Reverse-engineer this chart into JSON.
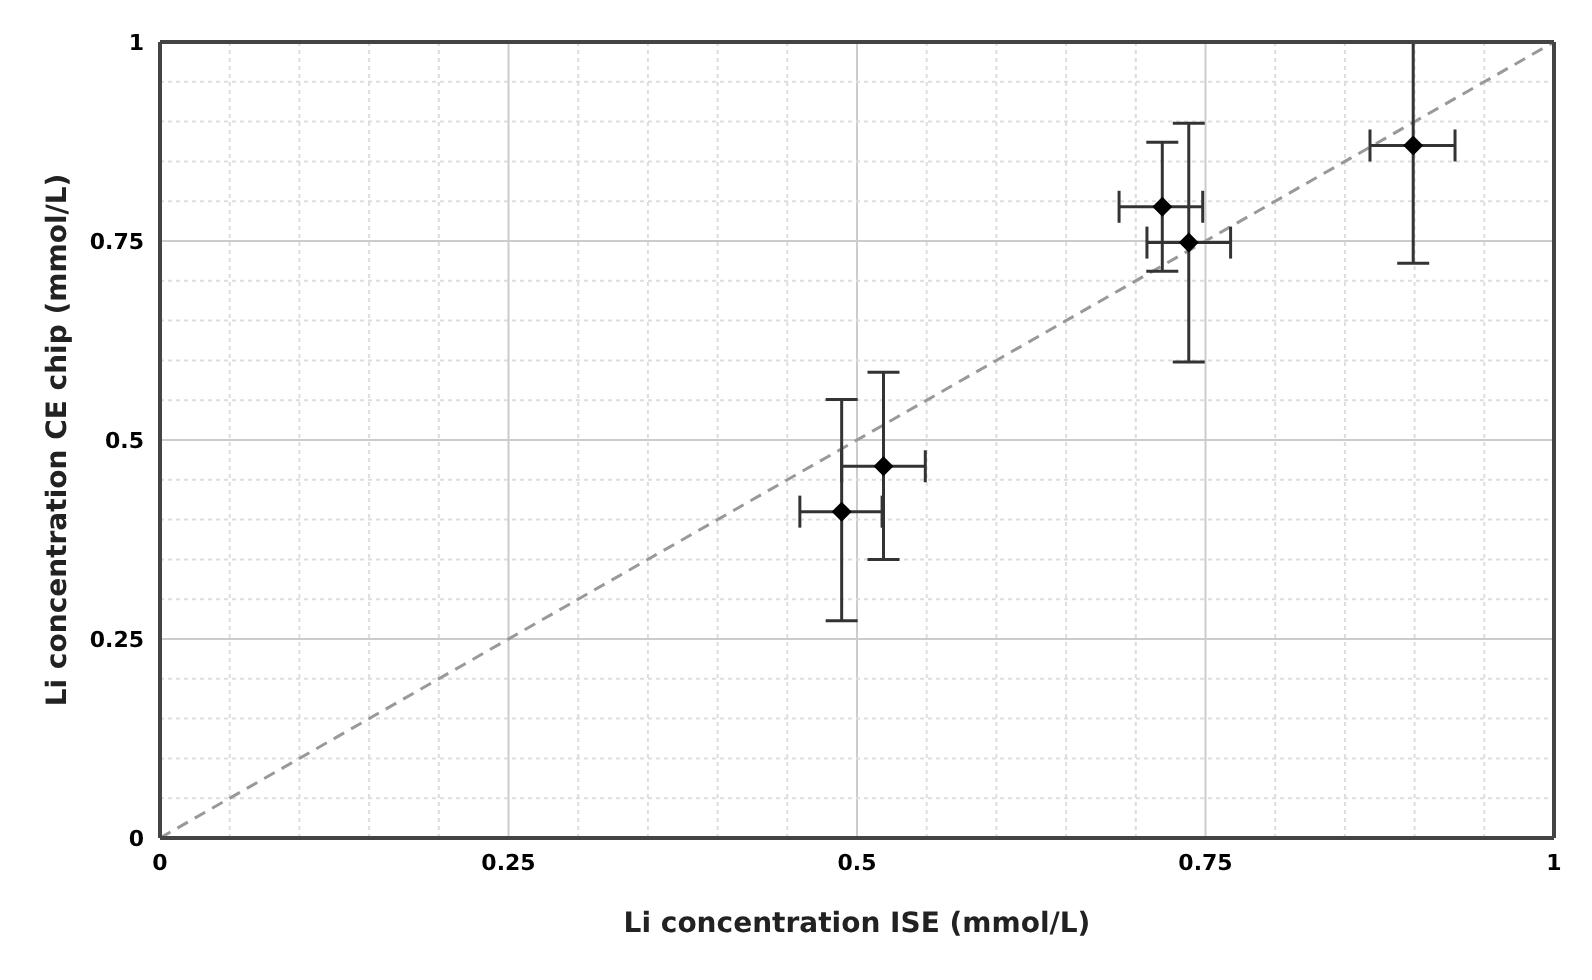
{
  "chart_data": {
    "type": "scatter",
    "xlabel": "Li concentration ISE (mmol/L)",
    "ylabel": "Li concentration CE chip (mmol/L)",
    "xlim": [
      0,
      1
    ],
    "ylim": [
      0,
      1
    ],
    "xticks": [
      0,
      {
        "value": 0.05,
        "label": null
      },
      {
        "value": 0.1,
        "label": null
      },
      {
        "value": 0.15,
        "label": null
      },
      {
        "value": 0.2,
        "label": null
      },
      0.25,
      {
        "value": 0.3,
        "label": null
      },
      {
        "value": 0.35,
        "label": null
      },
      {
        "value": 0.4,
        "label": null
      },
      {
        "value": 0.45,
        "label": null
      },
      0.5,
      {
        "value": 0.55,
        "label": null
      },
      {
        "value": 0.6,
        "label": null
      },
      {
        "value": 0.65,
        "label": null
      },
      {
        "value": 0.7,
        "label": null
      },
      0.75,
      {
        "value": 0.8,
        "label": null
      },
      {
        "value": 0.85,
        "label": null
      },
      {
        "value": 0.9,
        "label": null
      },
      {
        "value": 0.95,
        "label": null
      },
      1
    ],
    "yticks": [
      0,
      {
        "value": 0.05,
        "label": null
      },
      {
        "value": 0.1,
        "label": null
      },
      {
        "value": 0.15,
        "label": null
      },
      {
        "value": 0.2,
        "label": null
      },
      0.25,
      {
        "value": 0.3,
        "label": null
      },
      {
        "value": 0.35,
        "label": null
      },
      {
        "value": 0.4,
        "label": null
      },
      {
        "value": 0.45,
        "label": null
      },
      0.5,
      {
        "value": 0.55,
        "label": null
      },
      {
        "value": 0.6,
        "label": null
      },
      {
        "value": 0.65,
        "label": null
      },
      {
        "value": 0.7,
        "label": null
      },
      0.75,
      {
        "value": 0.8,
        "label": null
      },
      {
        "value": 0.85,
        "label": null
      },
      {
        "value": 0.9,
        "label": null
      },
      {
        "value": 0.95,
        "label": null
      },
      1
    ],
    "grid": true,
    "series": [
      {
        "color": "#000000",
        "marker": "diamond",
        "x": [
          0.489,
          0.519,
          0.719,
          0.738,
          0.899
        ],
        "values": [
          0.41,
          0.467,
          0.793,
          0.748,
          0.87
        ],
        "errors": [
          [
            0.273,
            0.551
          ],
          [
            0.35,
            0.585
          ],
          [
            0.712,
            0.874
          ],
          [
            0.598,
            0.898
          ],
          [
            0.722,
            1
          ]
        ],
        "xerrors": [
          [
            0.459,
            0.518
          ],
          [
            0.489,
            0.549
          ],
          [
            0.688,
            0.748
          ],
          [
            0.708,
            0.768
          ],
          [
            0.868,
            0.929
          ]
        ]
      },
      {
        "type": "line",
        "color": "#999999",
        "line_style": "dashed",
        "marker": "none",
        "x": [
          0,
          1
        ],
        "values": [
          0,
          1
        ]
      }
    ]
  }
}
